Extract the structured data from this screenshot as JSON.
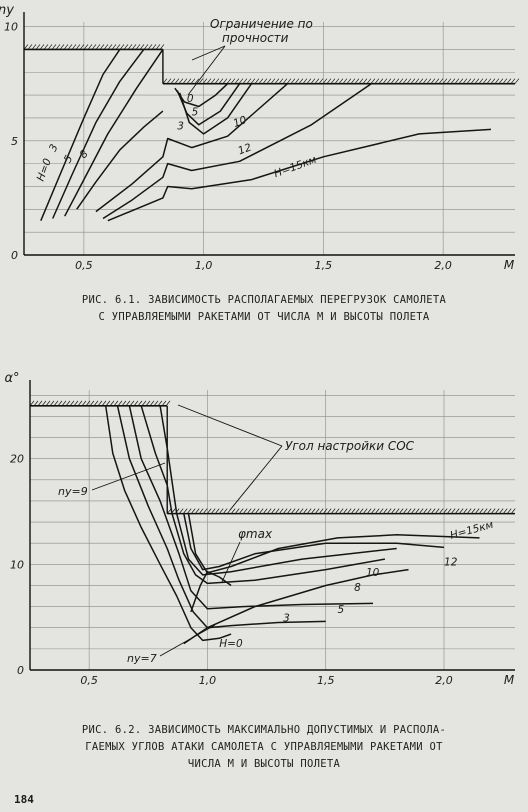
{
  "figure1": {
    "caption_lines": [
      "РИС. 6.1. ЗАВИСИМОСТЬ РАСПОЛАГАЕМЫХ ПЕРЕГРУЗОК САМОЛЕТА",
      "С УПРАВЛЯЕМЫМИ РАКЕТАМИ ОТ ЧИСЛА М И ВЫСОТЫ ПОЛЕТА"
    ],
    "annotation_lines": [
      "Ограничение по",
      "прочности"
    ],
    "chart_data": {
      "type": "line",
      "ylabel": "ny",
      "xlabel": "M",
      "xlim": [
        0.25,
        2.3
      ],
      "ylim": [
        0,
        10.2
      ],
      "x_ticks": [
        "0,5",
        "1,0",
        "1,5",
        "2,0"
      ],
      "x_tick_values": [
        0.5,
        1.0,
        1.5,
        2.0
      ],
      "y_ticks": [
        "0",
        "5",
        "10"
      ],
      "y_tick_values": [
        0,
        5,
        10
      ],
      "limits": [
        {
          "x": [
            0.25,
            0.83
          ],
          "y": 9.0
        },
        {
          "x": [
            0.83,
            2.3
          ],
          "y": 7.5
        }
      ],
      "series": [
        {
          "name": "H=0",
          "x": [
            0.32,
            0.4,
            0.5,
            0.58,
            0.65
          ],
          "y": [
            1.5,
            3.5,
            6.0,
            7.9,
            9.0
          ]
        },
        {
          "name": "3",
          "x": [
            0.37,
            0.45,
            0.55,
            0.65,
            0.75
          ],
          "y": [
            1.6,
            3.5,
            5.8,
            7.6,
            9.0
          ]
        },
        {
          "name": "5",
          "x": [
            0.42,
            0.5,
            0.6,
            0.72,
            0.83
          ],
          "y": [
            1.7,
            3.3,
            5.3,
            7.3,
            9.0
          ]
        },
        {
          "name": "8",
          "x": [
            0.47,
            0.55,
            0.65,
            0.75,
            0.83
          ],
          "y": [
            2.0,
            3.2,
            4.6,
            5.6,
            6.3
          ]
        },
        {
          "name": "0",
          "x": [
            0.88,
            0.92,
            0.98,
            1.05,
            1.1
          ],
          "y": [
            7.3,
            6.7,
            6.5,
            7.0,
            7.5
          ]
        },
        {
          "name": "3",
          "x": [
            0.89,
            0.93,
            0.98,
            1.07,
            1.15
          ],
          "y": [
            7.2,
            6.2,
            5.7,
            6.3,
            7.5
          ]
        },
        {
          "name": "5",
          "x": [
            0.9,
            0.94,
            1.0,
            1.1,
            1.2
          ],
          "y": [
            7.1,
            5.8,
            5.3,
            6.0,
            7.5
          ]
        },
        {
          "name": "10",
          "x": [
            0.55,
            0.7,
            0.83,
            0.85,
            0.95,
            1.1,
            1.35
          ],
          "y": [
            1.9,
            3.1,
            4.3,
            5.1,
            4.7,
            5.2,
            7.5
          ]
        },
        {
          "name": "12",
          "x": [
            0.58,
            0.7,
            0.83,
            0.85,
            0.95,
            1.15,
            1.45,
            1.7
          ],
          "y": [
            1.6,
            2.4,
            3.4,
            4.0,
            3.7,
            4.1,
            5.7,
            7.5
          ]
        },
        {
          "name": "H=15км",
          "x": [
            0.6,
            0.83,
            0.85,
            0.95,
            1.2,
            1.5,
            1.9,
            2.2
          ],
          "y": [
            1.5,
            2.5,
            3.0,
            2.9,
            3.3,
            4.3,
            5.3,
            5.5
          ]
        }
      ]
    }
  },
  "figure2": {
    "caption_lines": [
      "РИС. 6.2. ЗАВИСИМОСТЬ МАКСИМАЛЬНО ДОПУСТИМЫХ И РАСПОЛА-",
      "ГАЕМЫХ УГЛОВ АТАКИ САМОЛЕТА С УПРАВЛЯЕМЫМИ РАКЕТАМИ ОТ",
      "ЧИСЛА М И ВЫСОТЫ ПОЛЕТА"
    ],
    "annotation_lines": [
      "Угол настройки СОС"
    ],
    "phi_label": "φmax",
    "ny9_label": "ny=9",
    "ny7_label": "ny=7",
    "chart_data": {
      "type": "line",
      "ylabel": "α°",
      "xlabel": "M",
      "xlim": [
        0.25,
        2.3
      ],
      "ylim": [
        0,
        26.5
      ],
      "x_ticks": [
        "0,5",
        "1,0",
        "1,5",
        "2,0"
      ],
      "x_tick_values": [
        0.5,
        1.0,
        1.5,
        2.0
      ],
      "y_ticks": [
        "0",
        "10",
        "20"
      ],
      "y_tick_values": [
        0,
        10,
        20
      ],
      "limits": [
        {
          "x": [
            0.25,
            0.83
          ],
          "y": 25.0
        },
        {
          "x": [
            0.83,
            2.3
          ],
          "y": 14.8
        }
      ],
      "series": [
        {
          "name": "H=0",
          "x": [
            0.57,
            0.6,
            0.65,
            0.72,
            0.8,
            0.87,
            0.93,
            0.98,
            1.05,
            1.1
          ],
          "y": [
            25.0,
            20.5,
            17.0,
            13.5,
            10.0,
            7.0,
            4.0,
            2.8,
            3.0,
            3.4
          ]
        },
        {
          "name": "3",
          "x": [
            0.62,
            0.67,
            0.75,
            0.83,
            0.88,
            0.94,
            1.0,
            1.1,
            1.3,
            1.5
          ],
          "y": [
            25.0,
            20.0,
            15.5,
            11.5,
            8.5,
            5.5,
            4.0,
            4.2,
            4.5,
            4.6
          ]
        },
        {
          "name": "5",
          "x": [
            0.67,
            0.72,
            0.8,
            0.88,
            0.93,
            1.0,
            1.15,
            1.4,
            1.7
          ],
          "y": [
            25.0,
            20.0,
            16.0,
            11.0,
            7.5,
            5.8,
            6.0,
            6.2,
            6.3
          ]
        },
        {
          "name": "8",
          "x": [
            0.72,
            0.78,
            0.83,
            0.85,
            0.9,
            0.95,
            1.0,
            1.2,
            1.5,
            1.75
          ],
          "y": [
            25.0,
            20.5,
            17.5,
            14.8,
            11.0,
            9.0,
            8.2,
            8.5,
            9.5,
            10.5
          ]
        },
        {
          "name": "10",
          "x": [
            0.8,
            0.83,
            0.87,
            0.92,
            0.98,
            1.1,
            1.4,
            1.8
          ],
          "y": [
            25.0,
            21.0,
            14.8,
            10.5,
            9.0,
            9.3,
            10.5,
            11.5
          ]
        },
        {
          "name": "12",
          "x": [
            0.9,
            0.93,
            0.98,
            1.05,
            1.2,
            1.5,
            1.8,
            2.0
          ],
          "y": [
            14.8,
            11.5,
            9.5,
            9.8,
            11.0,
            12.0,
            12.0,
            11.6
          ]
        },
        {
          "name": "H=15км",
          "x": [
            0.92,
            0.95,
            1.0,
            1.1,
            1.3,
            1.55,
            1.8,
            2.15
          ],
          "y": [
            14.8,
            11.0,
            9.2,
            9.8,
            11.5,
            12.5,
            12.8,
            12.5
          ]
        },
        {
          "name": "ny=7",
          "x": [
            0.9,
            1.0,
            1.2,
            1.5,
            1.7,
            1.85
          ],
          "y": [
            2.5,
            4.0,
            6.0,
            8.0,
            9.0,
            9.5
          ]
        },
        {
          "name": "φmax",
          "x": [
            0.93,
            0.97,
            1.0,
            1.05,
            1.1
          ],
          "y": [
            5.5,
            8.0,
            9.3,
            8.8,
            8.0
          ]
        }
      ]
    }
  },
  "page_number": "184"
}
